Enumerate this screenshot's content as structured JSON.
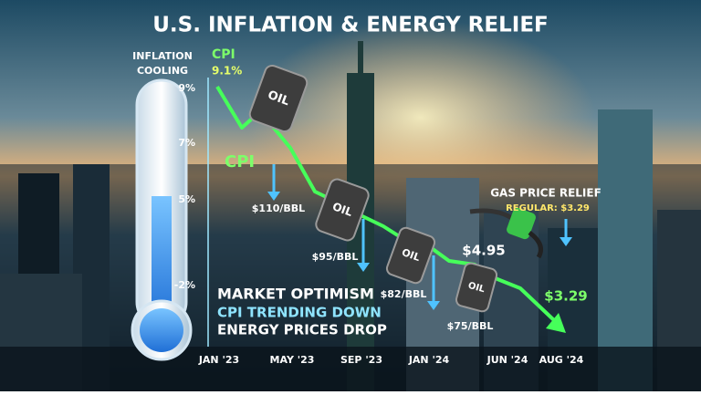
{
  "title": "U.S. INFLATION & ENERGY RELIEF",
  "thermometer": {
    "lines": [
      "INFLATION",
      "COOLING"
    ]
  },
  "cpi": {
    "label": "CPI",
    "start": "9.1%",
    "side_label": "CPI"
  },
  "y_labels": [
    "9%",
    "7%",
    "5%",
    "-2%"
  ],
  "x_labels": [
    "JAN '23",
    "MAY '23",
    "SEP '23",
    "JAN '24",
    "JUN '24",
    "AUG '24"
  ],
  "barrel_label": "OIL",
  "oil_prices": [
    "$110/BBL",
    "$95/BBL",
    "$82/BBL",
    "$75/BBL"
  ],
  "gas": {
    "title": "GAS PRICE RELIEF",
    "regular": "REGULAR: $3.29",
    "high": "$4.95",
    "low": "$3.29"
  },
  "notes": [
    "MARKET OPTIMISM",
    "CPI TRENDING DOWN",
    "ENERGY PRICES DROP"
  ]
}
